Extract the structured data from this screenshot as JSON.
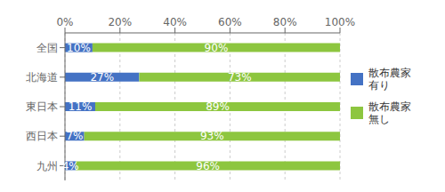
{
  "chart_data": {
    "type": "bar",
    "orientation": "horizontal",
    "stacked": true,
    "categories": [
      "全国",
      "北海道",
      "東日本",
      "西日本",
      "九州"
    ],
    "series": [
      {
        "name": "散布農家\n有り",
        "color": "#4472C4",
        "values": [
          10,
          27,
          11,
          7,
          4
        ],
        "value_labels": [
          "10%",
          "27%",
          "11%",
          "7%",
          "4%"
        ]
      },
      {
        "name": "散布農家\n無し",
        "color": "#8DC63F",
        "values": [
          90,
          73,
          89,
          93,
          96
        ],
        "value_labels": [
          "90%",
          "73%",
          "89%",
          "93%",
          "96%"
        ]
      }
    ],
    "xlim": [
      0,
      100
    ],
    "xticks": [
      {
        "value": 0,
        "label": "0%"
      },
      {
        "value": 20,
        "label": "20%"
      },
      {
        "value": 40,
        "label": "40%"
      },
      {
        "value": 60,
        "label": "60%"
      },
      {
        "value": 80,
        "label": "80%"
      },
      {
        "value": 100,
        "label": "100%"
      }
    ],
    "grid": true,
    "data_labels": true,
    "legend": "right"
  }
}
